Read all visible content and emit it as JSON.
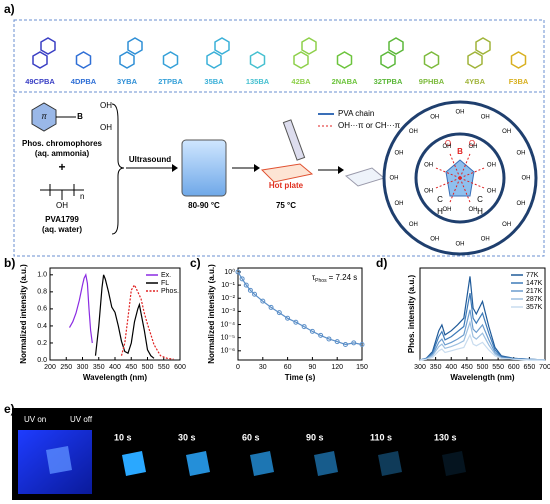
{
  "panel_labels": [
    "a)",
    "b)",
    "c)",
    "d)",
    "e)"
  ],
  "molecules": [
    {
      "name": "49CPBA",
      "color": "#3a3fc4"
    },
    {
      "name": "4DPBA",
      "color": "#2f6fd6"
    },
    {
      "name": "3YBA",
      "color": "#2f8fd6"
    },
    {
      "name": "2TPBA",
      "color": "#35a0d8"
    },
    {
      "name": "35BA",
      "color": "#3ab0d8"
    },
    {
      "name": "135BA",
      "color": "#45c0d0"
    },
    {
      "name": "42BA",
      "color": "#8ed04a"
    },
    {
      "name": "2NABA",
      "color": "#6cc43c"
    },
    {
      "name": "32TPBA",
      "color": "#5cb83a"
    },
    {
      "name": "9PHBA",
      "color": "#7cba3c"
    },
    {
      "name": "4YBA",
      "color": "#a0b43a"
    },
    {
      "name": "F3BA",
      "color": "#d8b020"
    }
  ],
  "scheme": {
    "chromophore": "Phos. chromophores",
    "chromophore_solvent": "(aq. ammonia)",
    "plus": "+",
    "polymer": "PVA1799",
    "polymer_solvent": "(aq. water)",
    "step1": "Ultrasound",
    "temp1": "80-90 °C",
    "hot_plate": "Hot plate",
    "temp2": "75 °C",
    "legend_chain": "PVA  chain",
    "legend_interaction": "OH···π or CH···π",
    "oh": "OH",
    "boron": "B",
    "oxygen": "O",
    "hydrogen": "H",
    "carbon": "C",
    "pi": "π",
    "n": "n"
  },
  "chart_data": [
    {
      "type": "line",
      "xlabel": "Wavelength (nm)",
      "ylabel": "Normalized intensity (a.u.)",
      "xlim": [
        200,
        600
      ],
      "ylim": [
        0,
        1.08
      ],
      "xticks": [
        200,
        250,
        300,
        350,
        400,
        450,
        500,
        550,
        600
      ],
      "yticks": [
        {
          "value": 0,
          "label": "0.0"
        },
        {
          "value": 0.2,
          "label": "0.2"
        },
        {
          "value": 0.4,
          "label": "0.4"
        },
        {
          "value": 0.6,
          "label": "0.6"
        },
        {
          "value": 0.8,
          "label": "0.8"
        },
        {
          "value": 1.0,
          "label": "1.0"
        }
      ],
      "legend": "upper right",
      "series": [
        {
          "name": "Ex.",
          "color": "#8a2be2",
          "style": "solid",
          "x": [
            260,
            270,
            280,
            290,
            300,
            305,
            310,
            315,
            320,
            325,
            330
          ],
          "values": [
            0.38,
            0.45,
            0.55,
            0.7,
            0.88,
            0.96,
            1.0,
            0.9,
            0.6,
            0.35,
            0.2
          ]
        },
        {
          "name": "FL",
          "color": "#000000",
          "style": "solid",
          "x": [
            340,
            350,
            360,
            365,
            370,
            380,
            390,
            400,
            410,
            420,
            430,
            440,
            450,
            460,
            470,
            475,
            480,
            490,
            500,
            510,
            520
          ],
          "values": [
            0.05,
            0.4,
            0.85,
            1.0,
            0.95,
            0.8,
            0.62,
            0.56,
            0.4,
            0.22,
            0.1,
            0.08,
            0.2,
            0.45,
            0.6,
            0.65,
            0.55,
            0.35,
            0.12,
            0.05,
            0.02
          ]
        },
        {
          "name": "Phos.",
          "color": "#e02020",
          "style": "dotted",
          "x": [
            420,
            430,
            440,
            450,
            460,
            470,
            480,
            490,
            500,
            510,
            520,
            540,
            560,
            580
          ],
          "values": [
            0.05,
            0.2,
            0.5,
            0.82,
            0.88,
            0.8,
            0.72,
            0.55,
            0.42,
            0.3,
            0.18,
            0.05,
            0.02,
            0.01
          ]
        }
      ]
    },
    {
      "type": "line",
      "markers": true,
      "log_y": true,
      "xlabel": "Time (s)",
      "ylabel": "Normalized intensity (a.u.)",
      "xlim": [
        0,
        150
      ],
      "ylim": [
        2e-07,
        2
      ],
      "xticks": [
        0,
        30,
        60,
        90,
        120,
        150
      ],
      "yticks": [
        {
          "value": 1,
          "label": "10⁰"
        },
        {
          "value": 0.1,
          "label": "10⁻¹"
        },
        {
          "value": 0.01,
          "label": "10⁻²"
        },
        {
          "value": 0.001,
          "label": "10⁻³"
        },
        {
          "value": 0.0001,
          "label": "10⁻⁴"
        },
        {
          "value": 1e-05,
          "label": "10⁻⁵"
        },
        {
          "value": 1e-06,
          "label": "10⁻⁶"
        }
      ],
      "annotation": {
        "symbol": "τ",
        "subscript": "Phos",
        "text": "= 7.24 s"
      },
      "series": [
        {
          "color": "#5b8fc8",
          "x": [
            0,
            5,
            10,
            15,
            20,
            30,
            40,
            50,
            60,
            70,
            80,
            90,
            100,
            110,
            120,
            130,
            140,
            150
          ],
          "values": [
            1,
            0.3,
            0.1,
            0.04,
            0.02,
            0.006,
            0.002,
            0.0008,
            0.0003,
            0.00015,
            7e-05,
            3e-05,
            1.5e-05,
            8e-06,
            5e-06,
            3e-06,
            4e-06,
            3e-06
          ]
        }
      ]
    },
    {
      "type": "line",
      "xlabel": "Wavelength (nm)",
      "ylabel": "Phos. intensity (a.u.)",
      "xlim": [
        300,
        700
      ],
      "ylim": [
        0,
        1.1
      ],
      "xticks": [
        300,
        350,
        400,
        450,
        500,
        550,
        600,
        650,
        700
      ],
      "legend": "upper right",
      "series": [
        {
          "name": "77K",
          "color": "#1f5a99",
          "style": "solid",
          "x": [
            300,
            320,
            340,
            360,
            370,
            380,
            400,
            420,
            440,
            460,
            470,
            480,
            500,
            520,
            540,
            560,
            600,
            650,
            700
          ],
          "values": [
            0,
            0.02,
            0.1,
            0.35,
            0.42,
            0.3,
            0.35,
            0.42,
            0.5,
            1.0,
            0.62,
            0.55,
            0.7,
            0.4,
            0.15,
            0.05,
            0.02,
            0.01,
            0
          ]
        },
        {
          "name": "147K",
          "color": "#3d7ab8",
          "style": "solid",
          "x": [
            300,
            320,
            340,
            360,
            370,
            380,
            400,
            420,
            440,
            460,
            470,
            480,
            500,
            520,
            540,
            560,
            600,
            650,
            700
          ],
          "values": [
            0,
            0.02,
            0.08,
            0.28,
            0.34,
            0.24,
            0.28,
            0.34,
            0.4,
            0.8,
            0.5,
            0.44,
            0.56,
            0.32,
            0.12,
            0.04,
            0.02,
            0.01,
            0
          ]
        },
        {
          "name": "217K",
          "color": "#6b9cce",
          "style": "solid",
          "x": [
            300,
            320,
            340,
            360,
            370,
            380,
            400,
            420,
            440,
            460,
            470,
            480,
            500,
            520,
            540,
            560,
            600,
            650,
            700
          ],
          "values": [
            0,
            0.01,
            0.06,
            0.21,
            0.25,
            0.18,
            0.21,
            0.25,
            0.3,
            0.6,
            0.37,
            0.33,
            0.42,
            0.24,
            0.09,
            0.03,
            0.01,
            0.01,
            0
          ]
        },
        {
          "name": "287K",
          "color": "#9cbfe0",
          "style": "solid",
          "x": [
            300,
            320,
            340,
            360,
            370,
            380,
            400,
            420,
            440,
            460,
            470,
            480,
            500,
            520,
            540,
            560,
            600,
            650,
            700
          ],
          "values": [
            0,
            0.01,
            0.05,
            0.16,
            0.19,
            0.14,
            0.16,
            0.19,
            0.23,
            0.45,
            0.28,
            0.25,
            0.32,
            0.18,
            0.07,
            0.02,
            0.01,
            0,
            0
          ]
        },
        {
          "name": "357K",
          "color": "#c8dcef",
          "style": "solid",
          "x": [
            300,
            320,
            340,
            360,
            370,
            380,
            400,
            420,
            440,
            460,
            470,
            480,
            500,
            520,
            540,
            560,
            600,
            650,
            700
          ],
          "values": [
            0,
            0.01,
            0.03,
            0.11,
            0.13,
            0.09,
            0.11,
            0.13,
            0.15,
            0.3,
            0.19,
            0.17,
            0.21,
            0.12,
            0.05,
            0.02,
            0.01,
            0,
            0
          ]
        }
      ]
    }
  ],
  "photo": {
    "uv_on": "UV on",
    "uv_off": "UV off",
    "times": [
      "10 s",
      "30 s",
      "60 s",
      "90 s",
      "110 s",
      "130 s"
    ]
  }
}
